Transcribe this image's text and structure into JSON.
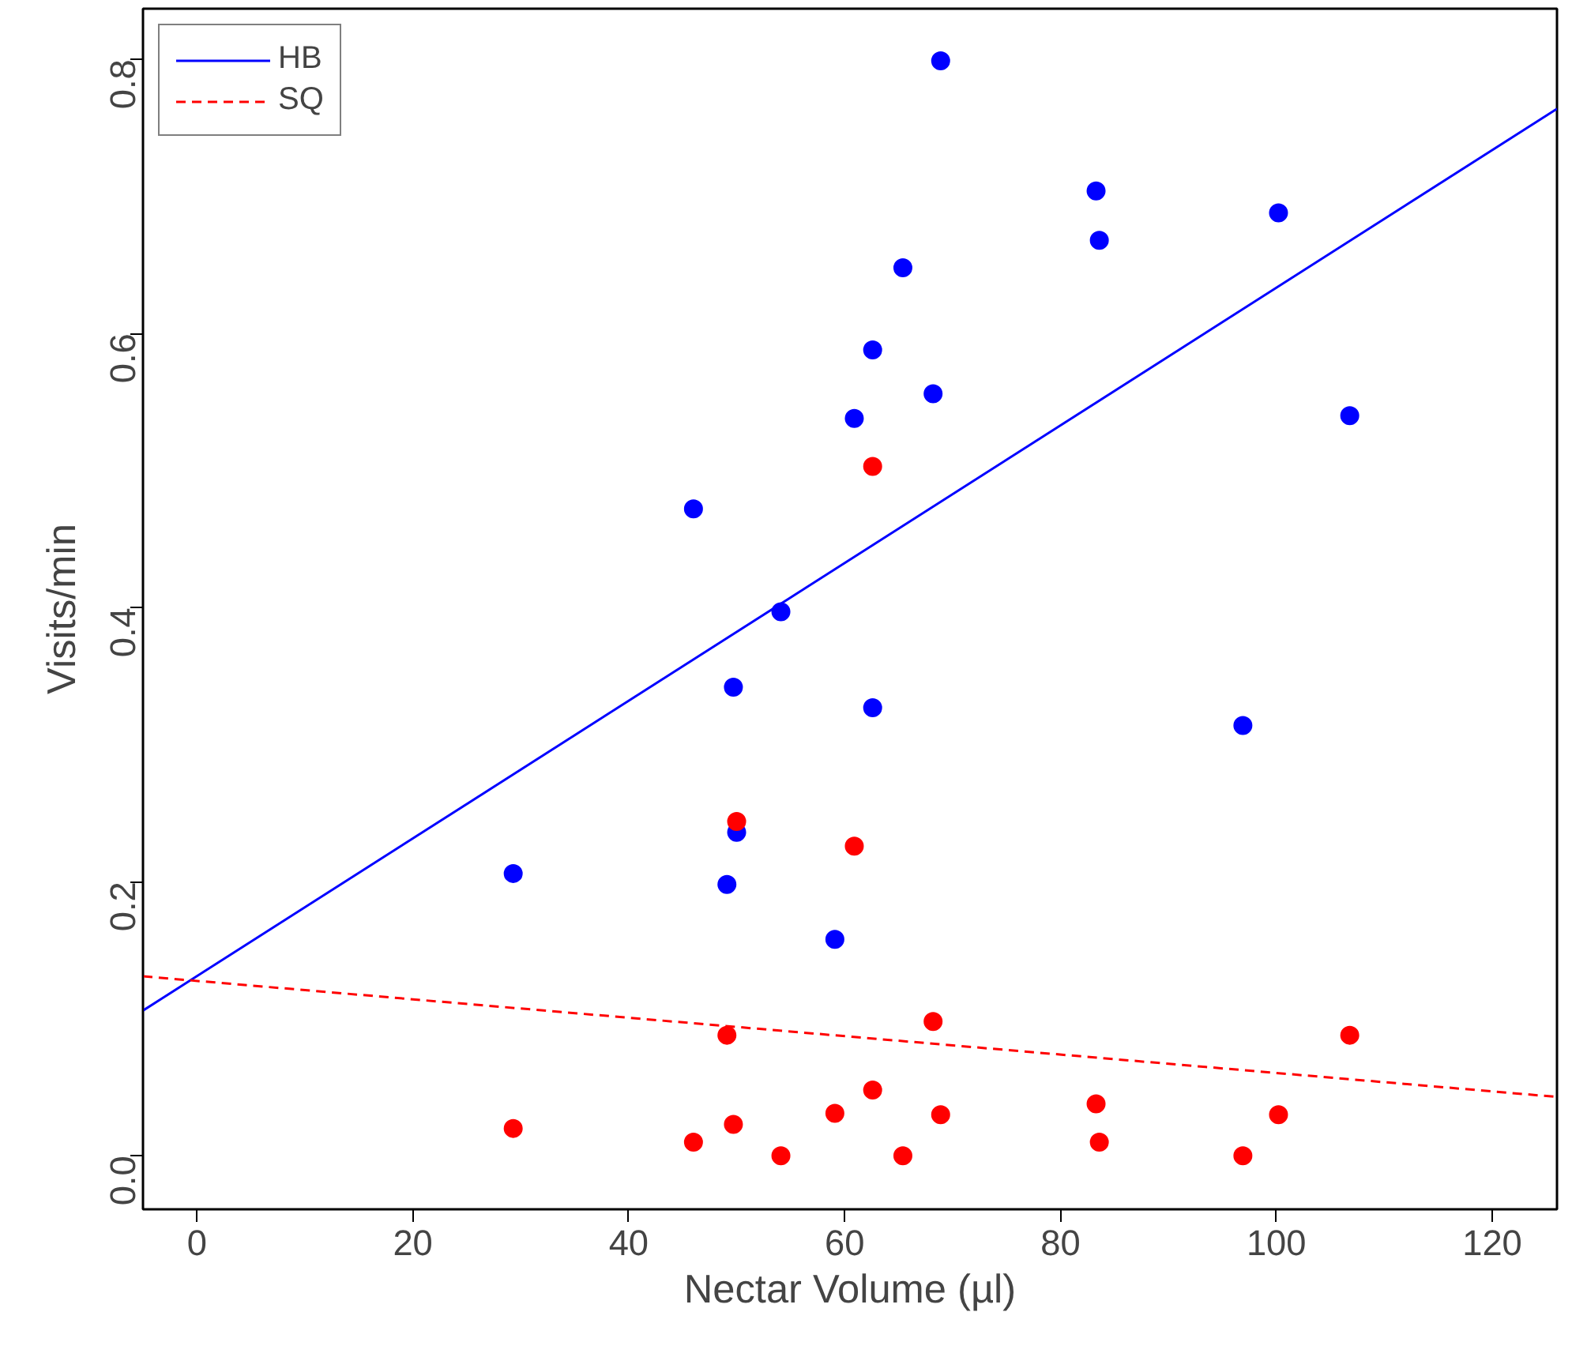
{
  "chart_data": {
    "type": "scatter",
    "xlabel": "Nectar Volume (µl)",
    "ylabel": "Visits/min",
    "xlim": [
      -5,
      126
    ],
    "ylim": [
      -0.039,
      0.837
    ],
    "xticks": [
      0,
      20,
      40,
      60,
      80,
      100,
      120
    ],
    "yticks": [
      {
        "value": 0,
        "label": "0.0"
      },
      0.2,
      0.4,
      0.6,
      0.8
    ],
    "grid": false,
    "legend": "top left",
    "series": [
      {
        "marker": "circle",
        "color": "#0000ff",
        "x": [
          29.3,
          46.0,
          54.1,
          49.7,
          50.0,
          49.1,
          59.1,
          60.9,
          62.6,
          62.6,
          65.4,
          68.2,
          68.9,
          83.3,
          83.6,
          96.9,
          100.2,
          106.8
        ],
        "values": [
          0.206,
          0.472,
          0.397,
          0.342,
          0.236,
          0.198,
          0.158,
          0.538,
          0.588,
          0.327,
          0.648,
          0.556,
          0.799,
          0.704,
          0.668,
          0.314,
          0.688,
          0.54
        ]
      },
      {
        "marker": "circle",
        "color": "#ff0000",
        "x": [
          29.3,
          46.0,
          49.7,
          50.0,
          49.1,
          54.1,
          59.1,
          60.9,
          62.6,
          62.6,
          65.4,
          68.2,
          68.9,
          83.3,
          83.6,
          96.9,
          100.2,
          106.8
        ],
        "values": [
          0.02,
          0.01,
          0.023,
          0.244,
          0.088,
          0.0,
          0.031,
          0.226,
          0.503,
          0.048,
          0.0,
          0.098,
          0.03,
          0.038,
          0.01,
          0.0,
          0.03,
          0.088
        ]
      },
      {
        "type": "line",
        "name": "HB",
        "color": "#0000ff",
        "line_style": "solid",
        "x": [
          -5,
          126
        ],
        "values": [
          0.106,
          0.764
        ]
      },
      {
        "type": "line",
        "name": "SQ",
        "color": "#ff0000",
        "line_style": "dashed",
        "x": [
          -5,
          126
        ],
        "values": [
          0.131,
          0.043
        ]
      }
    ]
  }
}
